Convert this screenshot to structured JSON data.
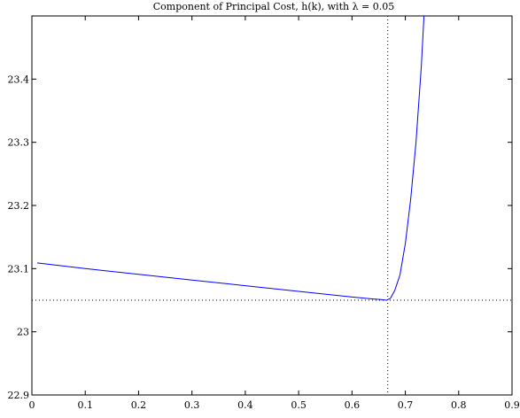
{
  "chart_data": {
    "type": "line",
    "title": "Component of Principal Cost, h(k), with λ = 0.05",
    "xlabel": "",
    "ylabel": "",
    "xlim": [
      0,
      0.9
    ],
    "ylim": [
      22.9,
      23.5
    ],
    "x_ticks": [
      "0",
      "0.1",
      "0.2",
      "0.3",
      "0.4",
      "0.5",
      "0.6",
      "0.7",
      "0.8",
      "0.9"
    ],
    "y_ticks": [
      "22.9",
      "23",
      "23.1",
      "23.2",
      "23.3",
      "23.4"
    ],
    "grid": false,
    "series": [
      {
        "color": "#0000ff",
        "x": [
          0.01,
          0.1,
          0.2,
          0.3,
          0.4,
          0.5,
          0.6,
          0.64,
          0.655,
          0.665,
          0.672,
          0.68,
          0.69,
          0.7,
          0.71,
          0.72,
          0.73,
          0.735
        ],
        "y": [
          23.109,
          23.1,
          23.091,
          23.082,
          23.073,
          23.064,
          23.055,
          23.052,
          23.051,
          23.05,
          23.053,
          23.065,
          23.09,
          23.14,
          23.21,
          23.3,
          23.42,
          23.5
        ]
      }
    ],
    "reference_lines": [
      {
        "orientation": "vertical",
        "value": 0.667,
        "style": "dotted",
        "color": "#000000"
      },
      {
        "orientation": "horizontal",
        "value": 23.05,
        "style": "dotted",
        "color": "#000000"
      }
    ]
  }
}
